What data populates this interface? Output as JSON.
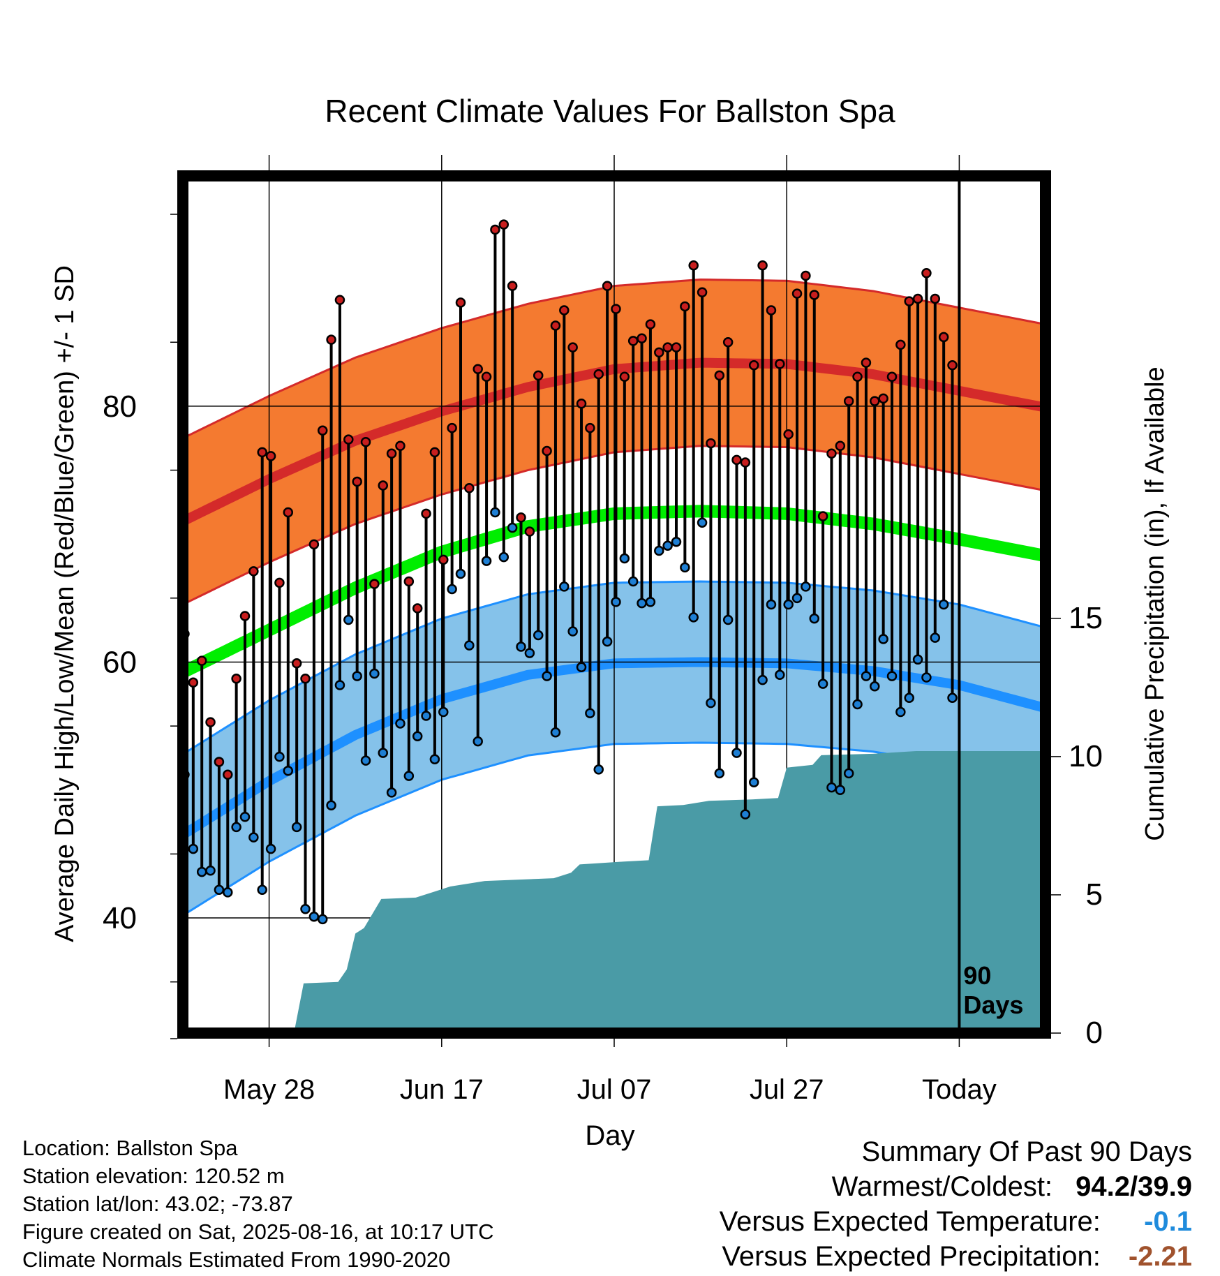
{
  "chart_data": {
    "type": "line",
    "title": "Recent Climate Values For Ballston Spa",
    "xlabel": "Day",
    "ylabel": "Average Daily High/Low/Mean (Red/Blue/Green) +/- 1 SD",
    "y2label": "Cumulative Precipitation (in), If Available",
    "ylim": [
      31,
      98
    ],
    "y2lim": [
      0,
      31
    ],
    "y_ticks": [
      "40",
      "60",
      "80"
    ],
    "y2_ticks": [
      "0",
      "5",
      "10",
      "15"
    ],
    "x_tick_labels": [
      "May 28",
      "Jun 17",
      "Jul 07",
      "Jul 27",
      "Today"
    ],
    "window_label": "90 Days",
    "colors": {
      "high_band": "#f47a30",
      "high_line": "#d42a2a",
      "low_band": "#85c2ea",
      "low_line": "#1e90ff",
      "mean_line": "#00ee00",
      "precip": "#4a9ba6",
      "high_dot": "#c81e1e",
      "low_dot": "#1e7fd4"
    },
    "days_since_window_start_note": "",
    "normals": {
      "high_mean": [
        [
          0,
          71
        ],
        [
          10,
          74.3
        ],
        [
          20,
          77.3
        ],
        [
          30,
          79.6
        ],
        [
          40,
          81.5
        ],
        [
          50,
          82.9
        ],
        [
          60,
          83.4
        ],
        [
          70,
          83.3
        ],
        [
          80,
          82.5
        ],
        [
          90,
          81.2
        ],
        [
          100,
          79.9
        ]
      ],
      "high_sd": 6.5,
      "low_mean": [
        [
          0,
          46.5
        ],
        [
          10,
          50.7
        ],
        [
          20,
          54.3
        ],
        [
          30,
          57.1
        ],
        [
          40,
          59.0
        ],
        [
          50,
          59.9
        ],
        [
          60,
          60.0
        ],
        [
          70,
          59.9
        ],
        [
          80,
          59.3
        ],
        [
          90,
          58.2
        ],
        [
          100,
          56.4
        ]
      ],
      "low_sd": 6.3,
      "mean": [
        [
          0,
          59.2
        ],
        [
          10,
          62.5
        ],
        [
          20,
          65.8
        ],
        [
          30,
          68.6
        ],
        [
          40,
          70.6
        ],
        [
          50,
          71.6
        ],
        [
          60,
          71.8
        ],
        [
          70,
          71.6
        ],
        [
          80,
          70.8
        ],
        [
          90,
          69.6
        ],
        [
          100,
          68.3
        ]
      ]
    },
    "observed": {
      "high": [
        62.2,
        58.4,
        60.1,
        55.3,
        52.2,
        51.2,
        58.7,
        63.6,
        67.1,
        76.4,
        76.1,
        66.2,
        71.7,
        59.9,
        58.7,
        69.2,
        78.1,
        85.2,
        88.3,
        77.4,
        74.1,
        77.2,
        66.1,
        73.8,
        76.3,
        76.9,
        66.3,
        64.2,
        71.6,
        76.4,
        68.0,
        78.3,
        88.1,
        73.6,
        82.9,
        82.3,
        93.8,
        94.2,
        89.4,
        71.3,
        70.2,
        82.4,
        76.5,
        86.3,
        87.5,
        84.6,
        80.2,
        78.3,
        82.5,
        89.4,
        87.6,
        82.3,
        85.1,
        85.3,
        86.4,
        84.2,
        84.6,
        84.6,
        87.8,
        91.0,
        88.9,
        77.1,
        82.4,
        85.0,
        75.8,
        75.6,
        83.2,
        91.0,
        87.5,
        83.3,
        77.8,
        88.8,
        90.2,
        88.7,
        71.4,
        76.3,
        76.9,
        80.4,
        82.3,
        83.4,
        80.4,
        80.6,
        82.3,
        84.8,
        88.2,
        88.4,
        90.4,
        88.4,
        85.4,
        83.2
      ],
      "low": [
        51.2,
        45.4,
        43.6,
        43.7,
        42.2,
        42.0,
        47.1,
        47.9,
        46.3,
        42.2,
        45.4,
        52.6,
        51.5,
        47.1,
        40.7,
        40.1,
        39.9,
        48.8,
        58.2,
        63.3,
        58.9,
        52.3,
        59.1,
        52.9,
        49.8,
        55.2,
        51.1,
        54.2,
        55.8,
        52.4,
        56.1,
        65.7,
        66.9,
        61.3,
        53.8,
        67.9,
        71.7,
        68.2,
        70.5,
        61.2,
        60.7,
        62.1,
        58.9,
        54.5,
        65.9,
        62.4,
        59.6,
        56.0,
        51.6,
        61.6,
        64.7,
        68.1,
        66.3,
        64.6,
        64.7,
        68.7,
        69.1,
        69.4,
        67.4,
        63.5,
        70.9,
        56.8,
        51.3,
        63.3,
        52.9,
        48.1,
        50.6,
        58.6,
        64.5,
        59.0,
        64.5,
        65.0,
        65.9,
        63.4,
        58.3,
        50.2,
        50.0,
        51.3,
        56.7,
        58.9,
        58.1,
        61.8,
        58.9,
        56.1,
        57.2,
        60.2,
        58.8,
        61.9,
        64.5,
        57.2
      ]
    },
    "precipitation_cumulative": [
      [
        0,
        0
      ],
      [
        5,
        0.05
      ],
      [
        8,
        0.1
      ],
      [
        12,
        0.18
      ],
      [
        13,
        0.2
      ],
      [
        14,
        1.8
      ],
      [
        18,
        1.85
      ],
      [
        19,
        2.3
      ],
      [
        20,
        3.6
      ],
      [
        21,
        3.8
      ],
      [
        23,
        4.85
      ],
      [
        27,
        4.9
      ],
      [
        29,
        5.1
      ],
      [
        31,
        5.3
      ],
      [
        35,
        5.5
      ],
      [
        43,
        5.6
      ],
      [
        45,
        5.8
      ],
      [
        46,
        6.1
      ],
      [
        51,
        6.2
      ],
      [
        54,
        6.25
      ],
      [
        55,
        8.2
      ],
      [
        58,
        8.25
      ],
      [
        61,
        8.4
      ],
      [
        66,
        8.45
      ],
      [
        69,
        8.5
      ],
      [
        70,
        9.6
      ],
      [
        73,
        9.7
      ],
      [
        74,
        10.05
      ],
      [
        80,
        10.1
      ],
      [
        85,
        10.2
      ],
      [
        95,
        10.2
      ],
      [
        100,
        10.2
      ]
    ]
  },
  "footer": {
    "location": "Location: Ballston Spa",
    "elevation": "Station elevation: 120.52 m",
    "latlon": "Station lat/lon: 43.02; -73.87",
    "created": "Figure created on Sat, 2025-08-16, at 10:17 UTC",
    "normals": "Climate Normals Estimated From 1990-2020"
  },
  "summary": {
    "heading": "Summary Of Past 90 Days",
    "extremes_label": "Warmest/Coldest:",
    "extremes_value": "94.2/39.9",
    "temp_label": "Versus Expected Temperature:",
    "temp_value": "-0.1",
    "precip_label": "Versus Expected Precipitation:",
    "precip_value": "-2.21"
  }
}
